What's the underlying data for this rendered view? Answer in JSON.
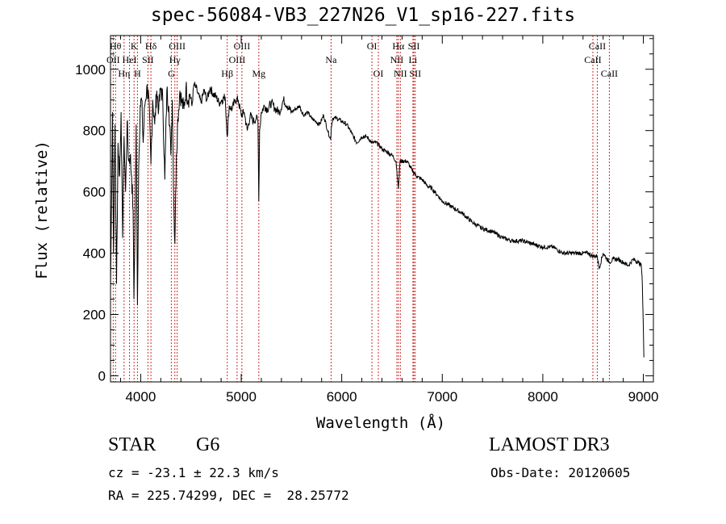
{
  "chart_data": {
    "type": "line",
    "title": "spec-56084-VB3_227N26_V1_sp16-227.fits",
    "xlabel": "Wavelength (Å)",
    "ylabel": "Flux (relative)",
    "xlim": [
      3700,
      9100
    ],
    "ylim": [
      -20,
      1110
    ],
    "xticks": [
      4000,
      5000,
      6000,
      7000,
      8000,
      9000
    ],
    "yticks": [
      0,
      200,
      400,
      600,
      800,
      1000
    ],
    "grid": false,
    "series": [
      {
        "name": "spectrum",
        "x": [
          3700,
          3720,
          3730,
          3745,
          3760,
          3775,
          3790,
          3805,
          3820,
          3835,
          3850,
          3865,
          3880,
          3895,
          3910,
          3925,
          3933,
          3945,
          3955,
          3968,
          3980,
          3995,
          4010,
          4025,
          4040,
          4060,
          4080,
          4102,
          4120,
          4140,
          4160,
          4180,
          4200,
          4220,
          4240,
          4260,
          4280,
          4300,
          4315,
          4330,
          4340,
          4355,
          4370,
          4390,
          4410,
          4430,
          4450,
          4470,
          4490,
          4510,
          4530,
          4550,
          4570,
          4600,
          4630,
          4660,
          4690,
          4720,
          4750,
          4780,
          4810,
          4840,
          4861,
          4880,
          4910,
          4940,
          4970,
          5000,
          5030,
          5060,
          5090,
          5120,
          5150,
          5167,
          5175,
          5183,
          5200,
          5230,
          5260,
          5300,
          5340,
          5380,
          5420,
          5460,
          5500,
          5540,
          5580,
          5620,
          5660,
          5700,
          5740,
          5780,
          5820,
          5860,
          5890,
          5896,
          5910,
          5950,
          6000,
          6050,
          6100,
          6150,
          6200,
          6250,
          6300,
          6350,
          6400,
          6450,
          6500,
          6540,
          6563,
          6580,
          6600,
          6650,
          6700,
          6750,
          6800,
          6850,
          6900,
          6950,
          7000,
          7100,
          7200,
          7300,
          7400,
          7500,
          7600,
          7700,
          7800,
          7900,
          8000,
          8100,
          8200,
          8300,
          8400,
          8450,
          8500,
          8542,
          8560,
          8600,
          8662,
          8700,
          8750,
          8800,
          8850,
          8900,
          8950,
          8980,
          8990,
          9000,
          9005
        ],
        "y": [
          280,
          860,
          400,
          820,
          300,
          760,
          650,
          860,
          450,
          780,
          600,
          830,
          700,
          720,
          650,
          540,
          250,
          520,
          820,
          230,
          680,
          880,
          900,
          760,
          880,
          940,
          910,
          690,
          900,
          820,
          930,
          870,
          940,
          900,
          640,
          930,
          880,
          720,
          900,
          560,
          430,
          720,
          840,
          930,
          890,
          870,
          940,
          900,
          920,
          880,
          950,
          940,
          920,
          890,
          930,
          900,
          940,
          920,
          910,
          890,
          900,
          910,
          780,
          880,
          870,
          900,
          900,
          850,
          860,
          800,
          850,
          830,
          840,
          830,
          570,
          800,
          860,
          880,
          870,
          890,
          870,
          860,
          900,
          880,
          860,
          870,
          880,
          850,
          860,
          840,
          830,
          820,
          850,
          800,
          770,
          810,
          840,
          840,
          830,
          820,
          790,
          760,
          780,
          780,
          760,
          760,
          740,
          730,
          720,
          700,
          610,
          700,
          700,
          700,
          670,
          650,
          640,
          620,
          610,
          590,
          570,
          550,
          530,
          500,
          480,
          470,
          450,
          440,
          440,
          430,
          420,
          420,
          400,
          400,
          400,
          400,
          390,
          390,
          350,
          400,
          370,
          380,
          380,
          370,
          360,
          380,
          370,
          360,
          300,
          160,
          60
        ]
      }
    ],
    "lines": [
      {
        "label": "OII",
        "wl": 3727,
        "row": 2
      },
      {
        "label": "Hθ",
        "wl": 3750,
        "row": 1
      },
      {
        "label": "Hη",
        "wl": 3835,
        "row": 3
      },
      {
        "label": "HeI",
        "wl": 3889,
        "row": 2
      },
      {
        "label": "K",
        "wl": 3934,
        "row": 1
      },
      {
        "label": "H",
        "wl": 3968,
        "row": 3
      },
      {
        "label": "SII",
        "wl": 4072,
        "row": 2
      },
      {
        "label": "Hδ",
        "wl": 4102,
        "row": 1
      },
      {
        "label": "G",
        "wl": 4305,
        "row": 3
      },
      {
        "label": "Hγ",
        "wl": 4340,
        "row": 2
      },
      {
        "label": "OIII",
        "wl": 4363,
        "row": 1
      },
      {
        "label": "Hβ",
        "wl": 4861,
        "row": 3
      },
      {
        "label": "OIII",
        "wl": 4959,
        "row": 2
      },
      {
        "label": "OIII",
        "wl": 5007,
        "row": 1
      },
      {
        "label": "Mg",
        "wl": 5175,
        "row": 3
      },
      {
        "label": "Na",
        "wl": 5894,
        "row": 2
      },
      {
        "label": "OI",
        "wl": 6300,
        "row": 1
      },
      {
        "label": "OI",
        "wl": 6364,
        "row": 3
      },
      {
        "label": "NII",
        "wl": 6548,
        "row": 2
      },
      {
        "label": "Hα",
        "wl": 6563,
        "row": 1
      },
      {
        "label": "NII",
        "wl": 6583,
        "row": 3
      },
      {
        "label": "Li",
        "wl": 6708,
        "row": 2
      },
      {
        "label": "SII",
        "wl": 6717,
        "row": 1
      },
      {
        "label": "SII",
        "wl": 6731,
        "row": 3
      },
      {
        "label": "CaII",
        "wl": 8498,
        "row": 2
      },
      {
        "label": "CaII",
        "wl": 8542,
        "row": 1
      },
      {
        "label": "CaII",
        "wl": 8662,
        "row": 3
      }
    ],
    "line_color": "#cc2b2b"
  },
  "info": {
    "class": "STAR",
    "subclass": "G6",
    "survey": "LAMOST DR3",
    "cz": "cz = -23.1 ± 22.3 km/s",
    "obs_date": "Obs-Date: 20120605",
    "coords": "RA = 225.74299, DEC =  28.25772"
  }
}
